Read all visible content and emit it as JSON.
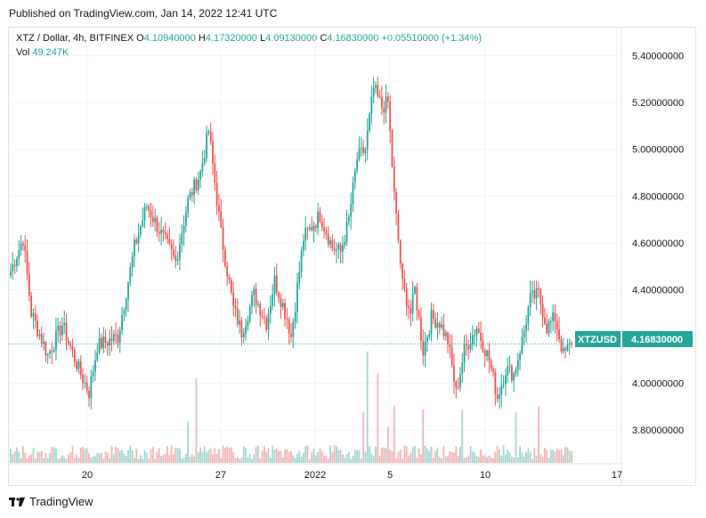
{
  "published": "Published on TradingView.com, Jan 14, 2022 12:41 UTC",
  "legend": {
    "symbol": "XTZ / Dollar, 4h, BITFINEX",
    "o_label": "O",
    "o_value": "4.10940000",
    "h_label": "H",
    "h_value": "4.17320000",
    "l_label": "L",
    "l_value": "4.09130000",
    "c_label": "C",
    "c_value": "4.16830000",
    "change": "+0.05510000 (+1.34%)",
    "vol_label": "Vol",
    "vol_value": "49.247K"
  },
  "price_tag": {
    "symbol": "XTZUSD",
    "value": "4.16830000"
  },
  "footer": {
    "brand": "TradingView"
  },
  "colors": {
    "up": "#26a69a",
    "down": "#ef5350",
    "up_vol": "#a5d6d1",
    "down_vol": "#f5b5b4"
  },
  "chart_data": {
    "type": "candlestick",
    "y_ticks": [
      "5.40000000",
      "5.20000000",
      "5.00000000",
      "4.80000000",
      "4.60000000",
      "4.40000000",
      "4.20000000",
      "4.00000000",
      "3.80000000"
    ],
    "x_ticks": [
      "20",
      "27",
      "2022",
      "5",
      "10",
      "17"
    ],
    "ylim": [
      3.66,
      5.52
    ],
    "current_price": 4.1683,
    "anchors": [
      [
        0,
        4.48
      ],
      [
        6,
        4.62
      ],
      [
        10,
        4.3
      ],
      [
        18,
        4.12
      ],
      [
        25,
        4.25
      ],
      [
        33,
        4.06
      ],
      [
        38,
        3.96
      ],
      [
        42,
        4.16
      ],
      [
        52,
        4.2
      ],
      [
        60,
        4.58
      ],
      [
        66,
        4.76
      ],
      [
        74,
        4.62
      ],
      [
        80,
        4.52
      ],
      [
        86,
        4.78
      ],
      [
        92,
        4.9
      ],
      [
        96,
        5.08
      ],
      [
        102,
        4.64
      ],
      [
        108,
        4.32
      ],
      [
        112,
        4.22
      ],
      [
        118,
        4.38
      ],
      [
        124,
        4.26
      ],
      [
        128,
        4.44
      ],
      [
        134,
        4.28
      ],
      [
        136,
        4.2
      ],
      [
        142,
        4.62
      ],
      [
        150,
        4.72
      ],
      [
        156,
        4.58
      ],
      [
        160,
        4.56
      ],
      [
        164,
        4.7
      ],
      [
        168,
        4.96
      ],
      [
        172,
        5.0
      ],
      [
        176,
        5.26
      ],
      [
        180,
        5.18
      ],
      [
        183,
        5.2
      ],
      [
        186,
        4.8
      ],
      [
        190,
        4.42
      ],
      [
        194,
        4.3
      ],
      [
        196,
        4.4
      ],
      [
        200,
        4.14
      ],
      [
        204,
        4.28
      ],
      [
        208,
        4.26
      ],
      [
        212,
        4.18
      ],
      [
        216,
        3.96
      ],
      [
        220,
        4.14
      ],
      [
        226,
        4.24
      ],
      [
        232,
        4.1
      ],
      [
        236,
        3.94
      ],
      [
        240,
        4.06
      ],
      [
        244,
        4.04
      ],
      [
        248,
        4.18
      ],
      [
        252,
        4.36
      ],
      [
        256,
        4.38
      ],
      [
        260,
        4.24
      ],
      [
        264,
        4.28
      ],
      [
        268,
        4.12
      ],
      [
        272,
        4.1683
      ]
    ],
    "candle_count": 273
  }
}
